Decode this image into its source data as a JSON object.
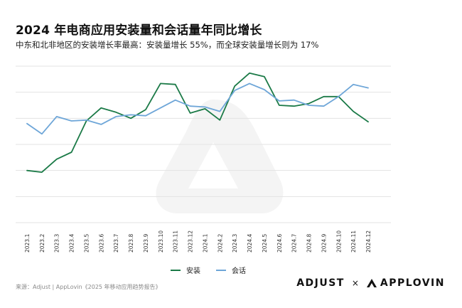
{
  "title": "2024 年电商应用安装量和会话量年同比增长",
  "subtitle": "中东和北非地区的安装增长率最高：安装量增长 55%，而全球安装量增长则为 17%",
  "source": "来源：Adjust | AppLovin《2025 年移动应用趋势报告》",
  "brand": {
    "adjust": "ADJUST",
    "separator": "×",
    "applovin": "APPLOVIN"
  },
  "colors": {
    "installs": "#1b7a47",
    "sessions": "#6ea6d8",
    "grid": "#e3e3e3"
  },
  "chart_data": {
    "type": "line",
    "categories": [
      "2023.1",
      "2023.2",
      "2023.3",
      "2023.4",
      "2023.5",
      "2023.6",
      "2023.7",
      "2023.8",
      "2023.9",
      "2023.10",
      "2023.11",
      "2023.12",
      "2024.1",
      "2024.2",
      "2024.3",
      "2024.4",
      "2024.5",
      "2024.6",
      "2024.7",
      "2024.8",
      "2024.9",
      "2024.10",
      "2024.11",
      "2024.12"
    ],
    "series": [
      {
        "name": "安装",
        "values": [
          2.0,
          1.8,
          3.3,
          4.1,
          7.7,
          9.2,
          8.7,
          8.0,
          9.0,
          12.0,
          11.9,
          8.6,
          9.1,
          7.8,
          11.7,
          13.2,
          12.8,
          9.5,
          9.4,
          9.7,
          10.5,
          10.5,
          8.8,
          7.6
        ]
      },
      {
        "name": "会话",
        "values": [
          7.4,
          6.2,
          8.2,
          7.7,
          7.8,
          7.3,
          8.2,
          8.4,
          8.3,
          9.2,
          10.1,
          9.4,
          9.3,
          8.8,
          11.2,
          12.0,
          11.3,
          10.0,
          10.1,
          9.5,
          9.4,
          10.5,
          11.9,
          11.5
        ]
      }
    ],
    "ylim": [
      -4,
      14
    ],
    "grid": true,
    "legend": "bottom-center"
  }
}
